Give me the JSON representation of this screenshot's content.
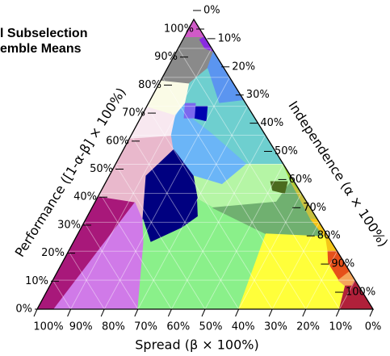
{
  "chart_data": {
    "type": "ternary",
    "title": [
      "l Subselection",
      "emble Means"
    ],
    "grid": true,
    "axes": {
      "performance": {
        "label": "Performance ([1-α-β] × 100%)",
        "lim": [
          0,
          100
        ],
        "ticks": [
          {
            "value": 0,
            "label": "0%"
          },
          {
            "value": 10,
            "label": "10%"
          },
          {
            "value": 20,
            "label": "20%"
          },
          {
            "value": 30,
            "label": "30%"
          },
          {
            "value": 40,
            "label": "40%"
          },
          {
            "value": 50,
            "label": "50%"
          },
          {
            "value": 60,
            "label": "60%"
          },
          {
            "value": 70,
            "label": "70%"
          },
          {
            "value": 80,
            "label": "80%"
          },
          {
            "value": 90,
            "label": "90%"
          },
          {
            "value": 100,
            "label": "100%"
          }
        ]
      },
      "independence": {
        "label": "Independence (α × 100%)",
        "lim": [
          0,
          100
        ],
        "ticks": [
          {
            "value": 0,
            "label": "0%"
          },
          {
            "value": 10,
            "label": "10%"
          },
          {
            "value": 20,
            "label": "20%"
          },
          {
            "value": 30,
            "label": "30%"
          },
          {
            "value": 40,
            "label": "40%"
          },
          {
            "value": 50,
            "label": "50%"
          },
          {
            "value": 60,
            "label": "60%"
          },
          {
            "value": 70,
            "label": "70%"
          },
          {
            "value": 80,
            "label": "80%"
          },
          {
            "value": 90,
            "label": "90%"
          },
          {
            "value": 100,
            "label": "100%"
          }
        ]
      },
      "spread": {
        "label": "Spread (β × 100%)",
        "lim": [
          0,
          100
        ],
        "ticks": [
          {
            "value": 100,
            "label": "100%"
          },
          {
            "value": 90,
            "label": "90%"
          },
          {
            "value": 80,
            "label": "80%"
          },
          {
            "value": 70,
            "label": "70%"
          },
          {
            "value": 60,
            "label": "60%"
          },
          {
            "value": 50,
            "label": "50%"
          },
          {
            "value": 40,
            "label": "40%"
          },
          {
            "value": 30,
            "label": "30%"
          },
          {
            "value": 20,
            "label": "20%"
          },
          {
            "value": 10,
            "label": "10%"
          },
          {
            "value": 0,
            "label": "0%"
          }
        ]
      }
    },
    "regions": [
      {
        "color": "#a8187a",
        "points": [
          [
            0,
            0
          ],
          [
            0,
            5
          ],
          [
            37,
            12
          ],
          [
            39,
            0
          ]
        ]
      },
      {
        "color": "#d07ae8",
        "points": [
          [
            0,
            5
          ],
          [
            0,
            30
          ],
          [
            23,
            21
          ],
          [
            31,
            17
          ],
          [
            37,
            12
          ]
        ]
      },
      {
        "color": "#e9b8cc",
        "points": [
          [
            39,
            0
          ],
          [
            37,
            12
          ],
          [
            31,
            17
          ],
          [
            46,
            11
          ],
          [
            55,
            15
          ],
          [
            60,
            12
          ],
          [
            59,
            0
          ]
        ]
      },
      {
        "color": "#f8e8f0",
        "points": [
          [
            59,
            0
          ],
          [
            60,
            12
          ],
          [
            67,
            10
          ],
          [
            70,
            0
          ]
        ]
      },
      {
        "color": "#fafbe6",
        "points": [
          [
            70,
            0
          ],
          [
            67,
            10
          ],
          [
            71,
            11
          ],
          [
            78,
            9
          ],
          [
            79,
            0
          ]
        ]
      },
      {
        "color": "#8a8a8a",
        "points": [
          [
            79,
            0
          ],
          [
            78,
            9
          ],
          [
            83,
            12
          ],
          [
            89,
            11
          ],
          [
            94,
            6
          ],
          [
            94,
            0
          ]
        ]
      },
      {
        "color": "#d05ac8",
        "points": [
          [
            94,
            0
          ],
          [
            100,
            0
          ],
          [
            94,
            6
          ]
        ]
      },
      {
        "color": "#8a2be2",
        "points": [
          [
            94,
            6
          ],
          [
            89,
            11
          ],
          [
            90,
            8
          ],
          [
            93,
            5
          ]
        ]
      },
      {
        "color": "#5b95f0",
        "points": [
          [
            83,
            12
          ],
          [
            89,
            11
          ],
          [
            72,
            28
          ],
          [
            71,
            21
          ]
        ]
      },
      {
        "color": "#6ecfcf",
        "points": [
          [
            83,
            12
          ],
          [
            71,
            21
          ],
          [
            72,
            28
          ],
          [
            50,
            50
          ],
          [
            50,
            39
          ],
          [
            61,
            23
          ],
          [
            66,
            15
          ],
          [
            71,
            11
          ],
          [
            78,
            9
          ]
        ]
      },
      {
        "color": "#6bb5f7",
        "points": [
          [
            67,
            10
          ],
          [
            71,
            11
          ],
          [
            66,
            15
          ],
          [
            61,
            23
          ],
          [
            50,
            39
          ],
          [
            43,
            35
          ],
          [
            46,
            25
          ],
          [
            55,
            15
          ],
          [
            60,
            12
          ]
        ]
      },
      {
        "color": "#0000b0",
        "points": [
          [
            70,
            14
          ],
          [
            70,
            18
          ],
          [
            65,
            20
          ],
          [
            66,
            16
          ]
        ]
      },
      {
        "color": "#7b68ee",
        "points": [
          [
            71,
            11
          ],
          [
            71,
            14
          ],
          [
            66,
            16
          ],
          [
            66,
            13
          ]
        ]
      },
      {
        "color": "#b5f5a5",
        "points": [
          [
            46,
            25
          ],
          [
            43,
            35
          ],
          [
            50,
            39
          ],
          [
            50,
            50
          ],
          [
            44,
            55
          ],
          [
            37,
            54
          ],
          [
            35,
            36
          ],
          [
            38,
            30
          ]
        ]
      },
      {
        "color": "#000080",
        "points": [
          [
            46,
            11
          ],
          [
            55,
            15
          ],
          [
            46,
            25
          ],
          [
            38,
            30
          ],
          [
            32,
            33
          ],
          [
            28,
            30
          ],
          [
            23,
            23
          ],
          [
            31,
            17
          ]
        ]
      },
      {
        "color": "#8af08a",
        "points": [
          [
            23,
            21
          ],
          [
            31,
            17
          ],
          [
            23,
            23
          ],
          [
            28,
            30
          ],
          [
            32,
            33
          ],
          [
            38,
            30
          ],
          [
            35,
            36
          ],
          [
            26,
            56
          ],
          [
            0,
            60
          ],
          [
            0,
            30
          ]
        ]
      },
      {
        "color": "#70b070",
        "points": [
          [
            35,
            36
          ],
          [
            37,
            54
          ],
          [
            44,
            55
          ],
          [
            37,
            63
          ],
          [
            25,
            74
          ],
          [
            26,
            56
          ]
        ]
      },
      {
        "color": "#9acd32",
        "points": [
          [
            50,
            50
          ],
          [
            31,
            69
          ],
          [
            31,
            67
          ],
          [
            44,
            55
          ]
        ]
      },
      {
        "color": "#c8c040",
        "points": [
          [
            44,
            55
          ],
          [
            31,
            67
          ],
          [
            25,
            74
          ],
          [
            37,
            63
          ]
        ]
      },
      {
        "color": "#4b6b1e",
        "points": [
          [
            44,
            49
          ],
          [
            44,
            54
          ],
          [
            40,
            55
          ],
          [
            41,
            51
          ]
        ]
      },
      {
        "color": "#f5c518",
        "points": [
          [
            31,
            67
          ],
          [
            31,
            69
          ],
          [
            20,
            80
          ],
          [
            20,
            77
          ],
          [
            25,
            74
          ]
        ]
      },
      {
        "color": "#e6501a",
        "points": [
          [
            20,
            77
          ],
          [
            20,
            80
          ],
          [
            13,
            87
          ],
          [
            10,
            85
          ],
          [
            16,
            79
          ]
        ]
      },
      {
        "color": "#ffff3a",
        "points": [
          [
            26,
            56
          ],
          [
            25,
            74
          ],
          [
            20,
            77
          ],
          [
            16,
            79
          ],
          [
            10,
            85
          ],
          [
            8,
            88
          ],
          [
            0,
            90
          ],
          [
            0,
            60
          ]
        ]
      },
      {
        "color": "#f5a45a",
        "points": [
          [
            10,
            85
          ],
          [
            13,
            87
          ],
          [
            10,
            90
          ],
          [
            8,
            90
          ],
          [
            8,
            88
          ]
        ]
      },
      {
        "color": "#b0203a",
        "points": [
          [
            8,
            88
          ],
          [
            8,
            90
          ],
          [
            10,
            90
          ],
          [
            9,
            91
          ],
          [
            0,
            100
          ],
          [
            0,
            90
          ]
        ]
      }
    ]
  }
}
